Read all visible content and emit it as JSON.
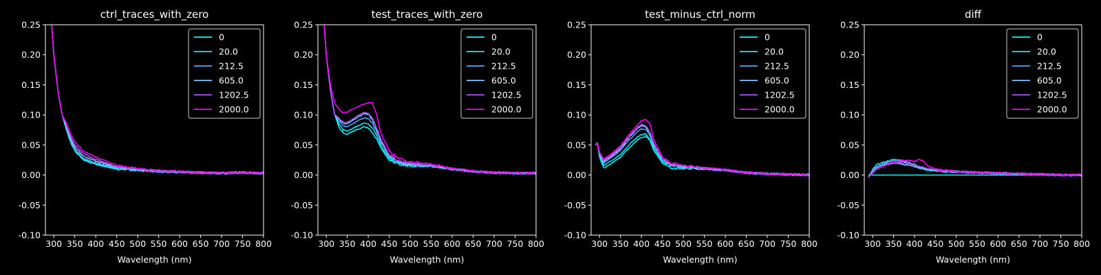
{
  "colors": {
    "background": "#000000",
    "foreground": "#ffffff",
    "series": [
      "#00ffff",
      "#14ebff",
      "#55aaff",
      "#80c8ff",
      "#aa55ff",
      "#ff00ff"
    ]
  },
  "chart_data": [
    {
      "type": "line",
      "title": "ctrl_traces_with_zero",
      "xlabel": "Wavelength (nm)",
      "ylabel": "",
      "xlim": [
        280,
        800
      ],
      "ylim": [
        -0.1,
        0.25
      ],
      "xticks": [
        300,
        350,
        400,
        450,
        500,
        550,
        600,
        650,
        700,
        750,
        800
      ],
      "yticks": [
        -0.1,
        -0.05,
        0.0,
        0.05,
        0.1,
        0.15,
        0.2,
        0.25
      ],
      "grid": false,
      "legend": "top-right",
      "x": [
        290,
        295,
        300,
        310,
        320,
        330,
        340,
        350,
        370,
        400,
        450,
        500,
        550,
        600,
        650,
        700,
        750,
        800
      ],
      "series": [
        {
          "name": "0",
          "values": [
            0.26,
            0.25,
            0.2,
            0.14,
            0.1,
            0.075,
            0.055,
            0.04,
            0.025,
            0.018,
            0.01,
            0.008,
            0.006,
            0.005,
            0.004,
            0.003,
            0.004,
            0.003
          ]
        },
        {
          "name": "20.0",
          "values": [
            0.26,
            0.25,
            0.2,
            0.14,
            0.1,
            0.076,
            0.056,
            0.041,
            0.026,
            0.019,
            0.011,
            0.008,
            0.006,
            0.005,
            0.004,
            0.003,
            0.004,
            0.003
          ]
        },
        {
          "name": "212.5",
          "values": [
            0.26,
            0.25,
            0.2,
            0.14,
            0.1,
            0.078,
            0.058,
            0.043,
            0.028,
            0.02,
            0.012,
            0.009,
            0.006,
            0.005,
            0.004,
            0.003,
            0.004,
            0.003
          ]
        },
        {
          "name": "605.0",
          "values": [
            0.26,
            0.25,
            0.2,
            0.14,
            0.1,
            0.08,
            0.06,
            0.046,
            0.032,
            0.023,
            0.013,
            0.009,
            0.007,
            0.005,
            0.004,
            0.003,
            0.004,
            0.003
          ]
        },
        {
          "name": "1202.5",
          "values": [
            0.26,
            0.25,
            0.2,
            0.14,
            0.1,
            0.083,
            0.064,
            0.05,
            0.036,
            0.026,
            0.014,
            0.01,
            0.007,
            0.005,
            0.004,
            0.003,
            0.004,
            0.003
          ]
        },
        {
          "name": "2000.0",
          "values": [
            0.26,
            0.25,
            0.2,
            0.14,
            0.1,
            0.086,
            0.068,
            0.055,
            0.04,
            0.03,
            0.016,
            0.011,
            0.007,
            0.006,
            0.004,
            0.003,
            0.004,
            0.003
          ]
        }
      ]
    },
    {
      "type": "line",
      "title": "test_traces_with_zero",
      "xlabel": "Wavelength (nm)",
      "ylabel": "",
      "xlim": [
        280,
        800
      ],
      "ylim": [
        -0.1,
        0.25
      ],
      "xticks": [
        300,
        350,
        400,
        450,
        500,
        550,
        600,
        650,
        700,
        750,
        800
      ],
      "yticks": [
        -0.1,
        -0.05,
        0.0,
        0.05,
        0.1,
        0.15,
        0.2,
        0.25
      ],
      "grid": false,
      "legend": "top-right",
      "x": [
        290,
        295,
        300,
        310,
        320,
        330,
        340,
        350,
        370,
        390,
        400,
        410,
        420,
        430,
        450,
        470,
        500,
        550,
        600,
        650,
        700,
        750,
        800
      ],
      "series": [
        {
          "name": "0",
          "values": [
            0.26,
            0.25,
            0.2,
            0.14,
            0.1,
            0.08,
            0.07,
            0.068,
            0.075,
            0.08,
            0.078,
            0.07,
            0.06,
            0.045,
            0.025,
            0.018,
            0.015,
            0.015,
            0.01,
            0.006,
            0.004,
            0.003,
            0.003
          ]
        },
        {
          "name": "20.0",
          "values": [
            0.26,
            0.25,
            0.2,
            0.14,
            0.1,
            0.085,
            0.075,
            0.073,
            0.08,
            0.086,
            0.085,
            0.078,
            0.066,
            0.05,
            0.028,
            0.02,
            0.016,
            0.015,
            0.01,
            0.006,
            0.004,
            0.003,
            0.003
          ]
        },
        {
          "name": "212.5",
          "values": [
            0.26,
            0.25,
            0.2,
            0.14,
            0.1,
            0.09,
            0.082,
            0.08,
            0.088,
            0.095,
            0.094,
            0.086,
            0.072,
            0.055,
            0.03,
            0.022,
            0.017,
            0.015,
            0.01,
            0.006,
            0.004,
            0.003,
            0.003
          ]
        },
        {
          "name": "605.0",
          "values": [
            0.26,
            0.25,
            0.2,
            0.14,
            0.1,
            0.093,
            0.086,
            0.085,
            0.094,
            0.102,
            0.101,
            0.092,
            0.076,
            0.058,
            0.032,
            0.023,
            0.018,
            0.016,
            0.01,
            0.006,
            0.004,
            0.003,
            0.003
          ]
        },
        {
          "name": "1202.5",
          "values": [
            0.26,
            0.25,
            0.2,
            0.14,
            0.1,
            0.095,
            0.088,
            0.087,
            0.096,
            0.104,
            0.103,
            0.094,
            0.078,
            0.06,
            0.033,
            0.024,
            0.019,
            0.016,
            0.01,
            0.006,
            0.004,
            0.003,
            0.003
          ]
        },
        {
          "name": "2000.0",
          "values": [
            0.26,
            0.25,
            0.2,
            0.15,
            0.12,
            0.11,
            0.103,
            0.105,
            0.112,
            0.118,
            0.12,
            0.12,
            0.1,
            0.07,
            0.04,
            0.028,
            0.022,
            0.018,
            0.011,
            0.007,
            0.004,
            0.003,
            0.003
          ]
        }
      ]
    },
    {
      "type": "line",
      "title": "test_minus_ctrl_norm",
      "xlabel": "Wavelength (nm)",
      "ylabel": "",
      "xlim": [
        280,
        800
      ],
      "ylim": [
        -0.1,
        0.25
      ],
      "xticks": [
        300,
        350,
        400,
        450,
        500,
        550,
        600,
        650,
        700,
        750,
        800
      ],
      "yticks": [
        -0.1,
        -0.05,
        0.0,
        0.05,
        0.1,
        0.15,
        0.2,
        0.25
      ],
      "grid": false,
      "legend": "top-right",
      "x": [
        290,
        295,
        300,
        310,
        330,
        350,
        370,
        390,
        400,
        410,
        420,
        430,
        450,
        470,
        500,
        550,
        600,
        650,
        700,
        750,
        800
      ],
      "series": [
        {
          "name": "0",
          "values": [
            0.05,
            0.053,
            0.03,
            0.012,
            0.02,
            0.03,
            0.045,
            0.058,
            0.063,
            0.064,
            0.058,
            0.04,
            0.02,
            0.012,
            0.011,
            0.01,
            0.008,
            0.004,
            0.002,
            0.001,
            0.0
          ]
        },
        {
          "name": "20.0",
          "values": [
            0.05,
            0.053,
            0.032,
            0.016,
            0.024,
            0.034,
            0.05,
            0.063,
            0.068,
            0.068,
            0.06,
            0.044,
            0.023,
            0.015,
            0.013,
            0.011,
            0.008,
            0.004,
            0.002,
            0.001,
            0.0
          ]
        },
        {
          "name": "212.5",
          "values": [
            0.05,
            0.053,
            0.035,
            0.02,
            0.03,
            0.041,
            0.058,
            0.072,
            0.077,
            0.076,
            0.066,
            0.048,
            0.025,
            0.017,
            0.014,
            0.011,
            0.008,
            0.004,
            0.002,
            0.001,
            0.0
          ]
        },
        {
          "name": "605.0",
          "values": [
            0.05,
            0.053,
            0.036,
            0.022,
            0.032,
            0.044,
            0.062,
            0.077,
            0.082,
            0.08,
            0.07,
            0.05,
            0.026,
            0.018,
            0.014,
            0.011,
            0.008,
            0.004,
            0.002,
            0.001,
            0.0
          ]
        },
        {
          "name": "1202.5",
          "values": [
            0.05,
            0.053,
            0.037,
            0.024,
            0.034,
            0.046,
            0.064,
            0.079,
            0.084,
            0.082,
            0.072,
            0.052,
            0.027,
            0.018,
            0.015,
            0.011,
            0.008,
            0.004,
            0.002,
            0.001,
            0.0
          ]
        },
        {
          "name": "2000.0",
          "values": [
            0.05,
            0.053,
            0.038,
            0.026,
            0.036,
            0.048,
            0.067,
            0.083,
            0.09,
            0.092,
            0.086,
            0.058,
            0.03,
            0.02,
            0.016,
            0.012,
            0.009,
            0.004,
            0.002,
            0.001,
            0.0
          ]
        }
      ]
    },
    {
      "type": "line",
      "title": "diff",
      "xlabel": "Wavelength (nm)",
      "ylabel": "",
      "xlim": [
        280,
        800
      ],
      "ylim": [
        -0.1,
        0.25
      ],
      "xticks": [
        300,
        350,
        400,
        450,
        500,
        550,
        600,
        650,
        700,
        750,
        800
      ],
      "yticks": [
        -0.1,
        -0.05,
        0.0,
        0.05,
        0.1,
        0.15,
        0.2,
        0.25
      ],
      "grid": false,
      "legend": "top-right",
      "x": [
        290,
        300,
        310,
        330,
        350,
        370,
        390,
        400,
        410,
        420,
        430,
        450,
        470,
        500,
        550,
        600,
        650,
        700,
        750,
        800
      ],
      "series": [
        {
          "name": "0",
          "values": [
            0.0,
            0.0,
            0.0,
            0.0,
            0.0,
            0.0,
            0.0,
            0.0,
            0.0,
            0.0,
            0.0,
            0.0,
            0.0,
            0.0,
            0.0,
            0.0,
            0.0,
            0.0,
            0.0,
            0.0
          ]
        },
        {
          "name": "20.0",
          "values": [
            -0.004,
            0.01,
            0.018,
            0.022,
            0.026,
            0.024,
            0.02,
            0.016,
            0.012,
            0.01,
            0.008,
            0.007,
            0.006,
            0.005,
            0.004,
            0.003,
            0.002,
            0.001,
            0.0,
            0.0
          ]
        },
        {
          "name": "212.5",
          "values": [
            -0.004,
            0.008,
            0.014,
            0.02,
            0.024,
            0.022,
            0.02,
            0.018,
            0.014,
            0.012,
            0.01,
            0.008,
            0.006,
            0.005,
            0.004,
            0.003,
            0.002,
            0.001,
            0.0,
            0.0
          ]
        },
        {
          "name": "605.0",
          "values": [
            -0.004,
            0.006,
            0.012,
            0.018,
            0.02,
            0.018,
            0.016,
            0.014,
            0.012,
            0.012,
            0.01,
            0.008,
            0.007,
            0.006,
            0.004,
            0.003,
            0.002,
            0.001,
            0.0,
            0.0
          ]
        },
        {
          "name": "1202.5",
          "values": [
            -0.004,
            0.004,
            0.01,
            0.016,
            0.02,
            0.02,
            0.018,
            0.016,
            0.014,
            0.013,
            0.011,
            0.009,
            0.007,
            0.006,
            0.004,
            0.003,
            0.002,
            0.001,
            0.0,
            0.0
          ]
        },
        {
          "name": "2000.0",
          "values": [
            -0.004,
            0.004,
            0.01,
            0.016,
            0.022,
            0.024,
            0.024,
            0.022,
            0.026,
            0.024,
            0.016,
            0.01,
            0.008,
            0.006,
            0.004,
            0.003,
            0.002,
            0.001,
            0.0,
            0.0
          ]
        }
      ]
    }
  ]
}
